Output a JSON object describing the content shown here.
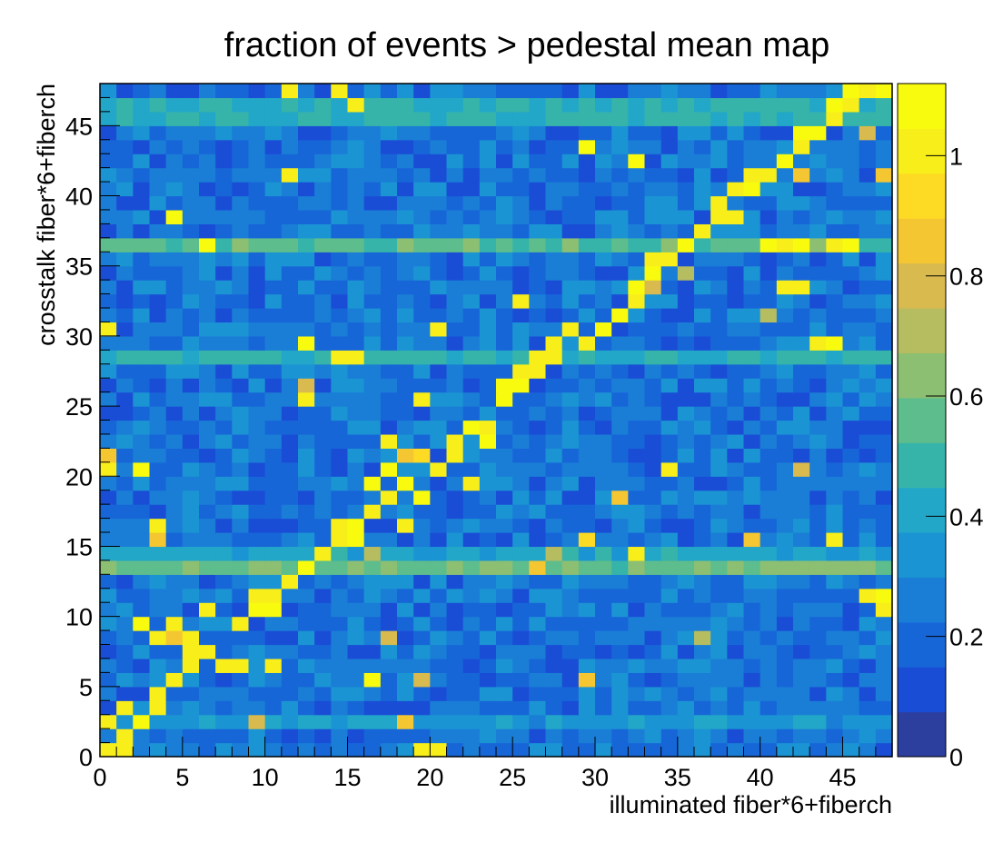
{
  "chart_data": {
    "type": "heatmap",
    "title": "fraction of events > pedestal mean map",
    "xlabel": "illuminated fiber*6+fiberch",
    "ylabel": "crosstalk fiber*6+fiberch",
    "xlim": [
      0,
      48
    ],
    "ylim": [
      0,
      48
    ],
    "x_bins": 48,
    "y_bins": 48,
    "x_ticks": [
      0,
      5,
      10,
      15,
      20,
      25,
      30,
      35,
      40,
      45
    ],
    "y_ticks": [
      0,
      5,
      10,
      15,
      20,
      25,
      30,
      35,
      40,
      45
    ],
    "colorbar": {
      "range": [
        0,
        1.12
      ],
      "ticks": [
        "0",
        "0.2",
        "0.4",
        "0.6",
        "0.8",
        "1"
      ],
      "tick_values": [
        0,
        0.2,
        0.4,
        0.6,
        0.8,
        1.0
      ],
      "palette": [
        "#2c3e9e",
        "#1a4dd6",
        "#1766d8",
        "#1a7ed6",
        "#1b94d4",
        "#22a7c8",
        "#36b4a9",
        "#5ebd8c",
        "#8cbf72",
        "#b6bc60",
        "#d8ba4f",
        "#f3c632",
        "#fdda24",
        "#f7ee1a",
        "#f9fb0e"
      ]
    },
    "background_level": 0.2,
    "horizontal_bands": [
      {
        "y": 36,
        "value": 0.55
      },
      {
        "y": 28,
        "value": 0.45
      },
      {
        "y": 13,
        "value": 0.58
      },
      {
        "y": 14,
        "value": 0.4
      },
      {
        "y": 2,
        "value": 0.35
      },
      {
        "y": 45,
        "value": 0.45
      },
      {
        "y": 46,
        "value": 0.45
      }
    ],
    "high_cells": [
      [
        0,
        0
      ],
      [
        1,
        0
      ],
      [
        20,
        0
      ],
      [
        1,
        1
      ],
      [
        0,
        2
      ],
      [
        1,
        3
      ],
      [
        2,
        2
      ],
      [
        3,
        3
      ],
      [
        3,
        4
      ],
      [
        4,
        5
      ],
      [
        5,
        6
      ],
      [
        6,
        7
      ],
      [
        7,
        6
      ],
      [
        8,
        6
      ],
      [
        5,
        7
      ],
      [
        5,
        8
      ],
      [
        3,
        8
      ],
      [
        4,
        9
      ],
      [
        2,
        9
      ],
      [
        6,
        10
      ],
      [
        8,
        9
      ],
      [
        9,
        10
      ],
      [
        9,
        11
      ],
      [
        10,
        10
      ],
      [
        10,
        11
      ],
      [
        11,
        12
      ],
      [
        12,
        13
      ],
      [
        13,
        14
      ],
      [
        14,
        15
      ],
      [
        14,
        16
      ],
      [
        15,
        15
      ],
      [
        15,
        16
      ],
      [
        16,
        17
      ],
      [
        17,
        18
      ],
      [
        16,
        19
      ],
      [
        17,
        20
      ],
      [
        18,
        19
      ],
      [
        19,
        18
      ],
      [
        19,
        21
      ],
      [
        20,
        20
      ],
      [
        21,
        21
      ],
      [
        21,
        22
      ],
      [
        22,
        23
      ],
      [
        22,
        19
      ],
      [
        23,
        23
      ],
      [
        23,
        22
      ],
      [
        24,
        25
      ],
      [
        24,
        26
      ],
      [
        25,
        26
      ],
      [
        25,
        27
      ],
      [
        26,
        27
      ],
      [
        26,
        28
      ],
      [
        27,
        28
      ],
      [
        27,
        29
      ],
      [
        28,
        30
      ],
      [
        29,
        29
      ],
      [
        30,
        30
      ],
      [
        31,
        31
      ],
      [
        32,
        32
      ],
      [
        32,
        33
      ],
      [
        33,
        34
      ],
      [
        33,
        35
      ],
      [
        34,
        35
      ],
      [
        35,
        36
      ],
      [
        36,
        37
      ],
      [
        37,
        38
      ],
      [
        37,
        39
      ],
      [
        38,
        38
      ],
      [
        38,
        40
      ],
      [
        39,
        40
      ],
      [
        39,
        41
      ],
      [
        40,
        41
      ],
      [
        41,
        42
      ],
      [
        42,
        43
      ],
      [
        42,
        44
      ],
      [
        43,
        44
      ],
      [
        44,
        45
      ],
      [
        44,
        46
      ],
      [
        45,
        46
      ],
      [
        46,
        47
      ],
      [
        47,
        47
      ],
      [
        20,
        30
      ],
      [
        0,
        20
      ],
      [
        0,
        30
      ],
      [
        11,
        41
      ],
      [
        15,
        46
      ],
      [
        29,
        43
      ],
      [
        32,
        42
      ],
      [
        40,
        36
      ],
      [
        41,
        36
      ],
      [
        42,
        36
      ],
      [
        44,
        36
      ],
      [
        45,
        36
      ],
      [
        41,
        33
      ],
      [
        42,
        33
      ],
      [
        43,
        29
      ],
      [
        44,
        29
      ],
      [
        46,
        11
      ],
      [
        47,
        11
      ],
      [
        44,
        15
      ],
      [
        47,
        10
      ],
      [
        32,
        14
      ],
      [
        25,
        32
      ],
      [
        18,
        16
      ],
      [
        14,
        28
      ],
      [
        15,
        28
      ],
      [
        17,
        22
      ],
      [
        19,
        25
      ],
      [
        6,
        36
      ],
      [
        4,
        38
      ],
      [
        3,
        16
      ],
      [
        2,
        20
      ],
      [
        12,
        29
      ],
      [
        12,
        25
      ],
      [
        10,
        6
      ],
      [
        16,
        5
      ],
      [
        19,
        0
      ],
      [
        45,
        47
      ],
      [
        11,
        47
      ],
      [
        14,
        47
      ],
      [
        34,
        20
      ]
    ],
    "mid_cells": [
      [
        15,
        16
      ],
      [
        16,
        14
      ],
      [
        17,
        8
      ],
      [
        19,
        5
      ],
      [
        18,
        2
      ],
      [
        9,
        2
      ],
      [
        4,
        8
      ],
      [
        3,
        15
      ],
      [
        0,
        21
      ],
      [
        12,
        26
      ],
      [
        18,
        21
      ],
      [
        27,
        14
      ],
      [
        26,
        13
      ],
      [
        31,
        18
      ],
      [
        29,
        15
      ],
      [
        35,
        34
      ],
      [
        33,
        33
      ],
      [
        42,
        41
      ],
      [
        47,
        41
      ],
      [
        40,
        31
      ],
      [
        39,
        15
      ],
      [
        36,
        8
      ],
      [
        46,
        44
      ],
      [
        29,
        5
      ],
      [
        42,
        20
      ]
    ]
  }
}
